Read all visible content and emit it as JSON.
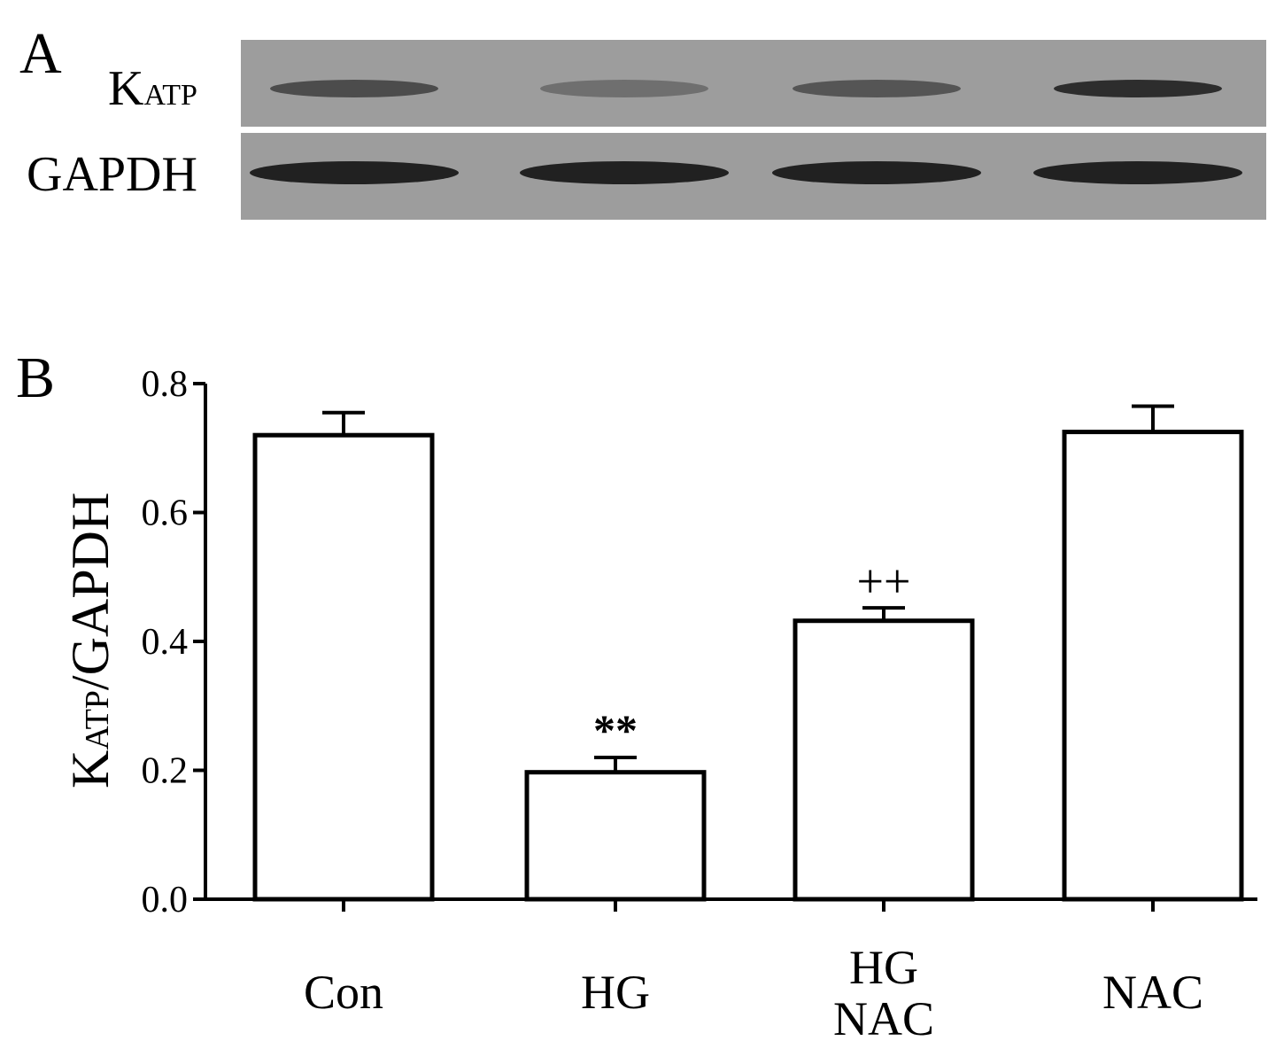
{
  "panel_a": {
    "letter": "A",
    "rows": [
      {
        "label_main": "K",
        "label_sub": "ATP",
        "band_intensity": [
          0.62,
          0.35,
          0.55,
          0.85
        ]
      },
      {
        "label_main": "GAPDH",
        "label_sub": "",
        "band_intensity": [
          0.95,
          0.95,
          0.95,
          0.95
        ]
      }
    ],
    "colors": {
      "membrane": "#9d9d9d",
      "band": "#1a1a1a"
    }
  },
  "panel_b": {
    "letter": "B"
  },
  "chart_data": {
    "type": "bar",
    "categories": [
      "Con",
      "HG",
      "HG\nNAC",
      "NAC"
    ],
    "values": [
      0.72,
      0.197,
      0.432,
      0.725
    ],
    "errors": [
      0.035,
      0.023,
      0.02,
      0.04
    ],
    "annotations": [
      "",
      "**",
      "++",
      ""
    ],
    "ylabel_main": "K",
    "ylabel_sub": "ATP",
    "ylabel_rest": "/GAPDH",
    "ylim": [
      0,
      0.8
    ],
    "yticks": [
      "0.0",
      "0.2",
      "0.4",
      "0.6",
      "0.8"
    ],
    "bar_fill": "#ffffff",
    "bar_stroke": "#000000",
    "grid": false
  }
}
